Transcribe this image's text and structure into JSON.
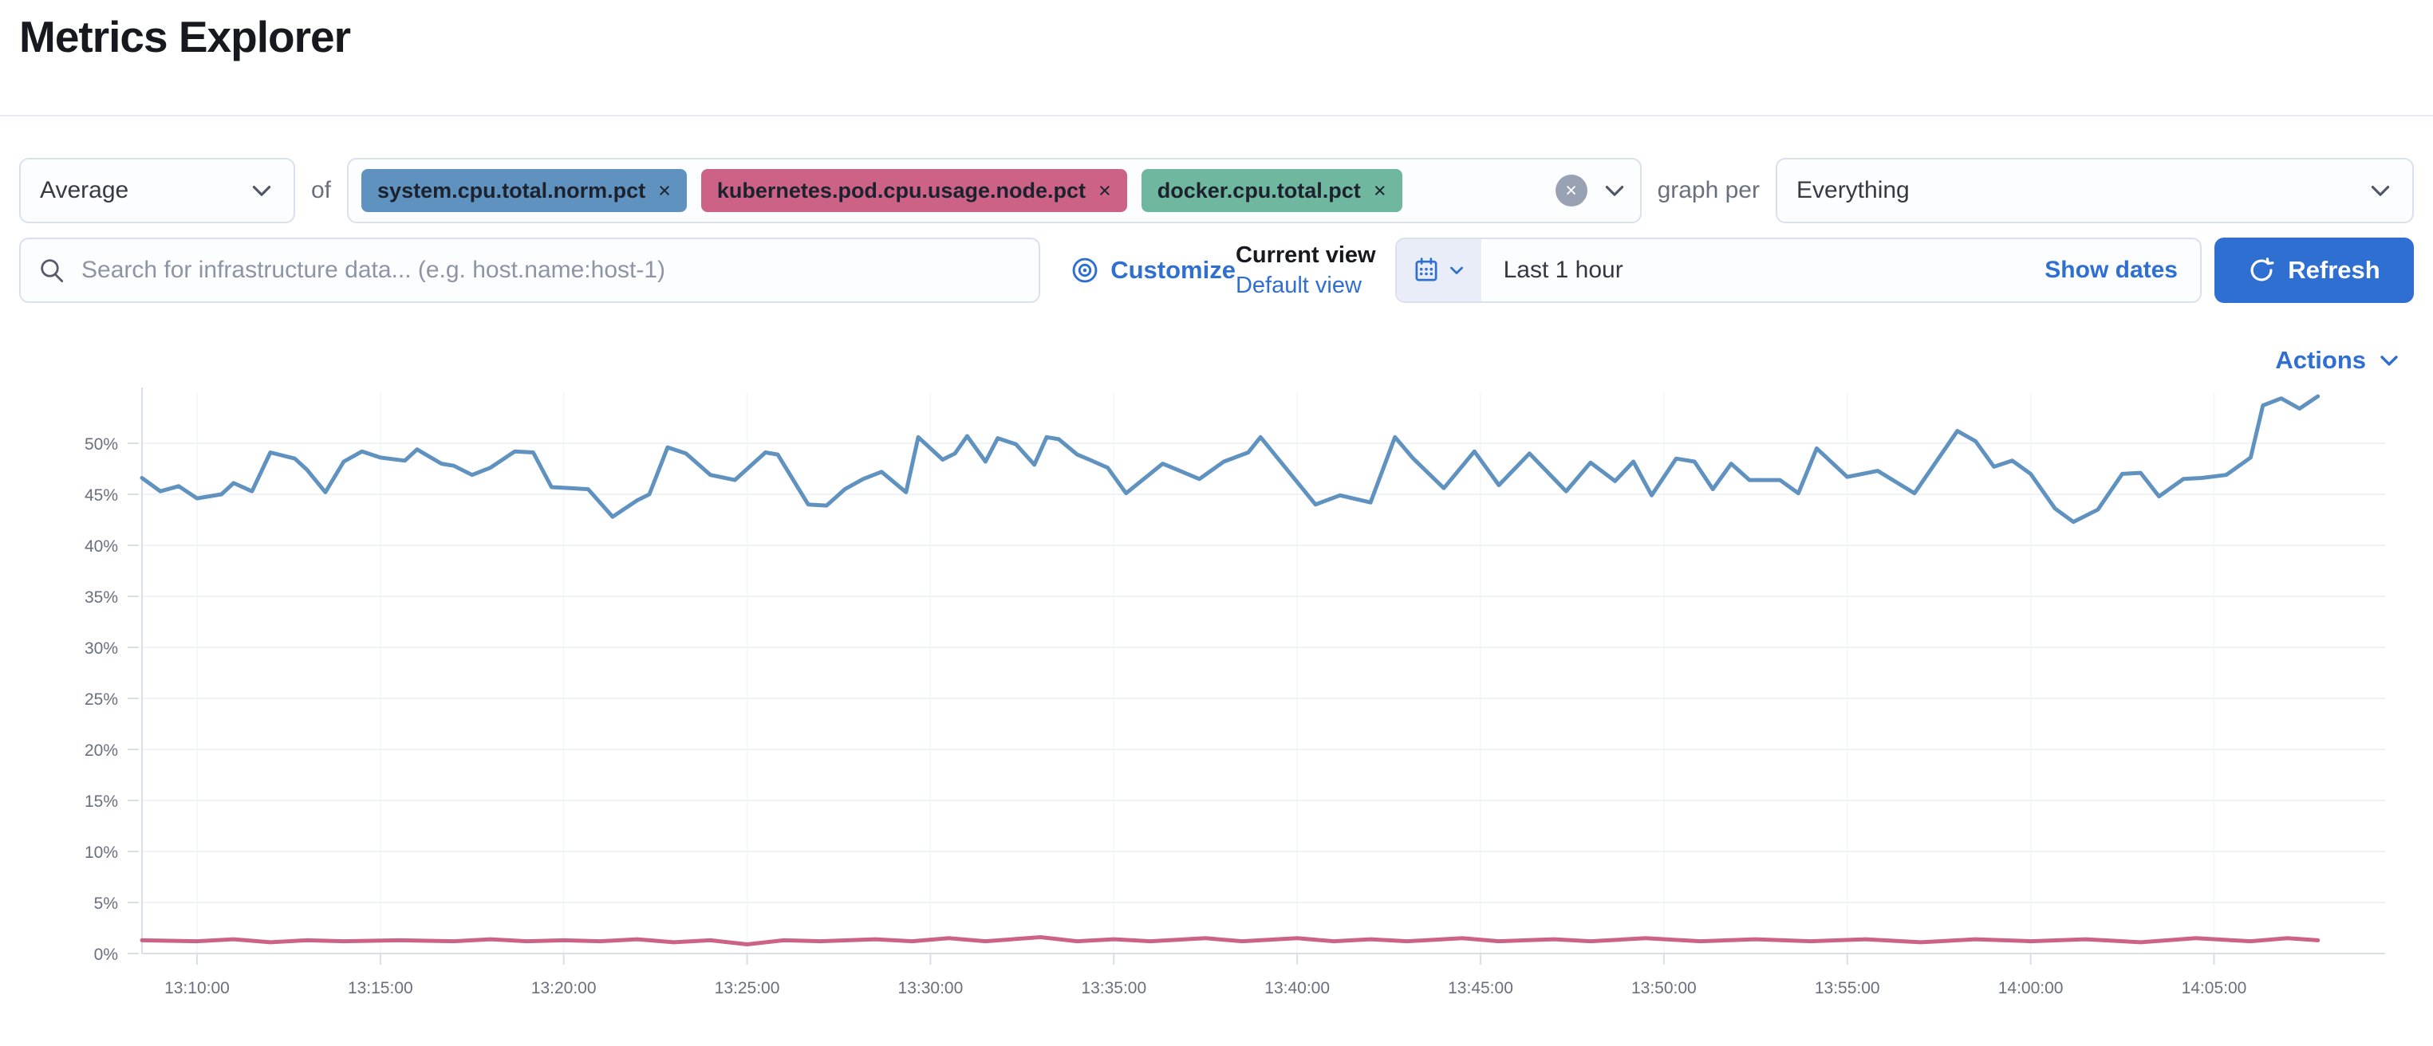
{
  "header": {
    "title": "Metrics Explorer"
  },
  "aggregation_row": {
    "aggregation_label": "Average",
    "of_label": "of",
    "metrics": [
      {
        "label": "system.cpu.total.norm.pct",
        "color": "#6092C0"
      },
      {
        "label": "kubernetes.pod.cpu.usage.node.pct",
        "color": "#CC6387"
      },
      {
        "label": "docker.cpu.total.pct",
        "color": "#6FB79F"
      }
    ],
    "remove_icon": "×",
    "clear_icon": "×",
    "graph_per_label": "graph per",
    "group_by_value": "Everything"
  },
  "search_row": {
    "search_placeholder": "Search for infrastructure data... (e.g. host.name:host-1)",
    "customize_label": "Customize",
    "current_view_label": "Current view",
    "default_view_label": "Default view",
    "time_range": "Last 1 hour",
    "show_dates_label": "Show dates",
    "refresh_label": "Refresh"
  },
  "actions_label": "Actions",
  "colors": {
    "primary_blue": "#2F6FD2",
    "series_blue": "#6092C0",
    "series_pink": "#CC6387",
    "axis_text": "#69707D",
    "grid_line": "#F0F3F8",
    "axis_line": "#D9DFE9"
  },
  "chart_data": {
    "type": "line",
    "title": "",
    "xlabel": "",
    "ylabel": "",
    "grid": true,
    "legend": "none",
    "ylim": [
      0,
      55
    ],
    "x_domain": [
      "13:08:30",
      "14:09:40"
    ],
    "y_ticks": [
      {
        "value": 0,
        "label": "0%"
      },
      {
        "value": 5,
        "label": "5%"
      },
      {
        "value": 10,
        "label": "10%"
      },
      {
        "value": 15,
        "label": "15%"
      },
      {
        "value": 20,
        "label": "20%"
      },
      {
        "value": 25,
        "label": "25%"
      },
      {
        "value": 30,
        "label": "30%"
      },
      {
        "value": 35,
        "label": "35%"
      },
      {
        "value": 40,
        "label": "40%"
      },
      {
        "value": 45,
        "label": "45%"
      },
      {
        "value": 50,
        "label": "50%"
      }
    ],
    "x_ticks": [
      "13:10:00",
      "13:15:00",
      "13:20:00",
      "13:25:00",
      "13:30:00",
      "13:35:00",
      "13:40:00",
      "13:45:00",
      "13:50:00",
      "13:55:00",
      "14:00:00",
      "14:05:00"
    ],
    "series": [
      {
        "name": "system.cpu.total.norm.pct",
        "color": "#6092C0",
        "points": [
          [
            "13:08:30",
            46.6
          ],
          [
            "13:09:00",
            45.3
          ],
          [
            "13:09:30",
            45.8
          ],
          [
            "13:10:00",
            44.6
          ],
          [
            "13:10:40",
            45.0
          ],
          [
            "13:11:00",
            46.1
          ],
          [
            "13:11:30",
            45.3
          ],
          [
            "13:12:00",
            49.1
          ],
          [
            "13:12:40",
            48.5
          ],
          [
            "13:13:00",
            47.4
          ],
          [
            "13:13:30",
            45.2
          ],
          [
            "13:14:00",
            48.2
          ],
          [
            "13:14:30",
            49.2
          ],
          [
            "13:15:00",
            48.6
          ],
          [
            "13:15:40",
            48.3
          ],
          [
            "13:16:00",
            49.4
          ],
          [
            "13:16:40",
            48.0
          ],
          [
            "13:17:00",
            47.8
          ],
          [
            "13:17:30",
            46.9
          ],
          [
            "13:18:00",
            47.6
          ],
          [
            "13:18:40",
            49.2
          ],
          [
            "13:19:10",
            49.1
          ],
          [
            "13:19:40",
            45.7
          ],
          [
            "13:20:10",
            45.6
          ],
          [
            "13:20:40",
            45.5
          ],
          [
            "13:21:20",
            42.8
          ],
          [
            "13:22:00",
            44.4
          ],
          [
            "13:22:20",
            45.0
          ],
          [
            "13:22:50",
            49.6
          ],
          [
            "13:23:20",
            49.0
          ],
          [
            "13:24:00",
            46.9
          ],
          [
            "13:24:40",
            46.4
          ],
          [
            "13:25:30",
            49.1
          ],
          [
            "13:25:50",
            48.9
          ],
          [
            "13:26:40",
            44.0
          ],
          [
            "13:27:10",
            43.9
          ],
          [
            "13:27:40",
            45.5
          ],
          [
            "13:28:10",
            46.5
          ],
          [
            "13:28:40",
            47.2
          ],
          [
            "13:29:20",
            45.2
          ],
          [
            "13:29:40",
            50.6
          ],
          [
            "13:30:20",
            48.4
          ],
          [
            "13:30:40",
            49.0
          ],
          [
            "13:31:00",
            50.7
          ],
          [
            "13:31:30",
            48.2
          ],
          [
            "13:31:50",
            50.5
          ],
          [
            "13:32:20",
            49.9
          ],
          [
            "13:32:50",
            47.9
          ],
          [
            "13:33:10",
            50.6
          ],
          [
            "13:33:30",
            50.4
          ],
          [
            "13:34:00",
            48.9
          ],
          [
            "13:34:20",
            48.4
          ],
          [
            "13:34:50",
            47.6
          ],
          [
            "13:35:20",
            45.1
          ],
          [
            "13:36:20",
            48.0
          ],
          [
            "13:37:20",
            46.5
          ],
          [
            "13:38:00",
            48.2
          ],
          [
            "13:38:40",
            49.1
          ],
          [
            "13:39:00",
            50.6
          ],
          [
            "13:40:30",
            44.0
          ],
          [
            "13:41:10",
            44.9
          ],
          [
            "13:42:00",
            44.2
          ],
          [
            "13:42:40",
            50.6
          ],
          [
            "13:43:10",
            48.5
          ],
          [
            "13:44:00",
            45.6
          ],
          [
            "13:44:50",
            49.2
          ],
          [
            "13:45:30",
            45.9
          ],
          [
            "13:46:20",
            49.0
          ],
          [
            "13:47:20",
            45.3
          ],
          [
            "13:48:00",
            48.1
          ],
          [
            "13:48:40",
            46.3
          ],
          [
            "13:49:10",
            48.2
          ],
          [
            "13:49:40",
            44.9
          ],
          [
            "13:50:20",
            48.5
          ],
          [
            "13:50:50",
            48.2
          ],
          [
            "13:51:20",
            45.5
          ],
          [
            "13:51:50",
            48.0
          ],
          [
            "13:52:20",
            46.4
          ],
          [
            "13:53:10",
            46.4
          ],
          [
            "13:53:40",
            45.1
          ],
          [
            "13:54:10",
            49.5
          ],
          [
            "13:55:00",
            46.7
          ],
          [
            "13:55:50",
            47.3
          ],
          [
            "13:56:50",
            45.1
          ],
          [
            "13:58:00",
            51.2
          ],
          [
            "13:58:30",
            50.2
          ],
          [
            "13:59:00",
            47.7
          ],
          [
            "13:59:30",
            48.3
          ],
          [
            "14:00:00",
            47.0
          ],
          [
            "14:00:40",
            43.6
          ],
          [
            "14:01:10",
            42.3
          ],
          [
            "14:01:50",
            43.5
          ],
          [
            "14:02:30",
            47.0
          ],
          [
            "14:03:00",
            47.1
          ],
          [
            "14:03:30",
            44.8
          ],
          [
            "14:04:10",
            46.5
          ],
          [
            "14:04:40",
            46.6
          ],
          [
            "14:05:20",
            46.9
          ],
          [
            "14:06:00",
            48.6
          ],
          [
            "14:06:20",
            53.7
          ],
          [
            "14:06:50",
            54.4
          ],
          [
            "14:07:20",
            53.4
          ],
          [
            "14:07:50",
            54.6
          ]
        ]
      },
      {
        "name": "kubernetes.pod.cpu.usage.node.pct",
        "color": "#CC6387",
        "points": [
          [
            "13:08:30",
            1.3
          ],
          [
            "13:10:00",
            1.2
          ],
          [
            "13:11:00",
            1.4
          ],
          [
            "13:12:00",
            1.1
          ],
          [
            "13:13:00",
            1.3
          ],
          [
            "13:14:00",
            1.2
          ],
          [
            "13:15:30",
            1.3
          ],
          [
            "13:17:00",
            1.2
          ],
          [
            "13:18:00",
            1.4
          ],
          [
            "13:19:00",
            1.2
          ],
          [
            "13:20:00",
            1.3
          ],
          [
            "13:21:00",
            1.2
          ],
          [
            "13:22:00",
            1.4
          ],
          [
            "13:23:00",
            1.1
          ],
          [
            "13:24:00",
            1.3
          ],
          [
            "13:25:00",
            0.9
          ],
          [
            "13:26:00",
            1.3
          ],
          [
            "13:27:00",
            1.2
          ],
          [
            "13:28:30",
            1.4
          ],
          [
            "13:29:30",
            1.2
          ],
          [
            "13:30:30",
            1.5
          ],
          [
            "13:31:30",
            1.2
          ],
          [
            "13:33:00",
            1.6
          ],
          [
            "13:34:00",
            1.2
          ],
          [
            "13:35:00",
            1.4
          ],
          [
            "13:36:00",
            1.2
          ],
          [
            "13:37:30",
            1.5
          ],
          [
            "13:38:30",
            1.2
          ],
          [
            "13:40:00",
            1.5
          ],
          [
            "13:41:00",
            1.2
          ],
          [
            "13:42:00",
            1.4
          ],
          [
            "13:43:00",
            1.2
          ],
          [
            "13:44:30",
            1.5
          ],
          [
            "13:45:30",
            1.2
          ],
          [
            "13:47:00",
            1.4
          ],
          [
            "13:48:00",
            1.2
          ],
          [
            "13:49:30",
            1.5
          ],
          [
            "13:51:00",
            1.2
          ],
          [
            "13:52:30",
            1.4
          ],
          [
            "13:54:00",
            1.2
          ],
          [
            "13:55:30",
            1.4
          ],
          [
            "13:57:00",
            1.1
          ],
          [
            "13:58:30",
            1.4
          ],
          [
            "14:00:00",
            1.2
          ],
          [
            "14:01:30",
            1.4
          ],
          [
            "14:03:00",
            1.1
          ],
          [
            "14:04:30",
            1.5
          ],
          [
            "14:06:00",
            1.2
          ],
          [
            "14:07:00",
            1.5
          ],
          [
            "14:07:50",
            1.3
          ]
        ]
      }
    ]
  }
}
